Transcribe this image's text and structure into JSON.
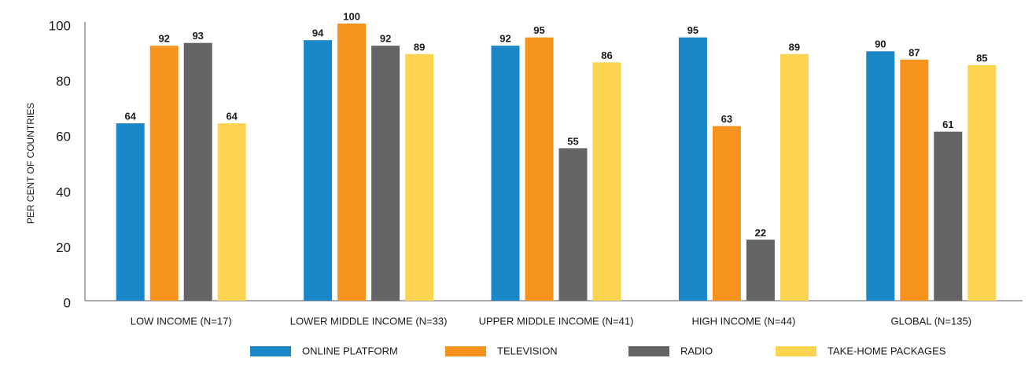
{
  "chart_data": {
    "type": "bar",
    "y_label": "PER CENT OF COUNTRIES",
    "categories": [
      "LOW INCOME (N=17)",
      "LOWER MIDDLE INCOME (N=33)",
      "UPPER MIDDLE INCOME (N=41)",
      "HIGH INCOME (N=44)",
      "GLOBAL (N=135)"
    ],
    "series": [
      {
        "name": "ONLINE PLATFORM",
        "color": "#1a87c9",
        "values": [
          64,
          94,
          92,
          95,
          90
        ]
      },
      {
        "name": "TELEVISION",
        "color": "#f5931e",
        "values": [
          92,
          100,
          95,
          63,
          87
        ]
      },
      {
        "name": "RADIO",
        "color": "#636466",
        "values": [
          93,
          92,
          55,
          22,
          61
        ]
      },
      {
        "name": "TAKE-HOME PACKAGES",
        "color": "#fdd44f",
        "values": [
          64,
          89,
          86,
          89,
          85
        ]
      }
    ],
    "ylim": [
      0,
      100
    ],
    "yticks": [
      0,
      20,
      40,
      60,
      80,
      100
    ],
    "grid": false,
    "legend": "bottom"
  }
}
